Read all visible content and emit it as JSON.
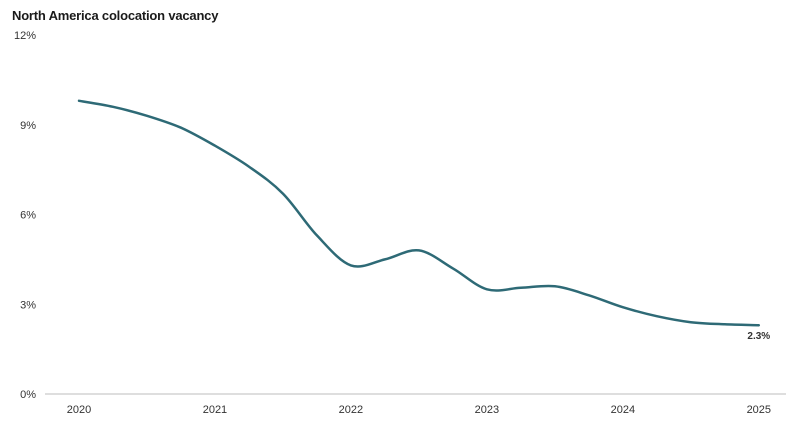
{
  "chart_data": {
    "type": "line",
    "title": "North America colocation vacancy",
    "xlabel": "",
    "ylabel": "",
    "x": [
      2020.0,
      2020.25,
      2020.5,
      2020.75,
      2021.0,
      2021.25,
      2021.5,
      2021.75,
      2022.0,
      2022.25,
      2022.5,
      2022.75,
      2023.0,
      2023.25,
      2023.5,
      2023.75,
      2024.0,
      2024.25,
      2024.5,
      2024.75,
      2025.0
    ],
    "values": [
      9.8,
      9.6,
      9.3,
      8.9,
      8.3,
      7.6,
      6.7,
      5.3,
      4.3,
      4.5,
      4.8,
      4.2,
      3.5,
      3.55,
      3.6,
      3.3,
      2.9,
      2.6,
      2.4,
      2.33,
      2.3
    ],
    "xticks": [
      "2020",
      "2021",
      "2022",
      "2023",
      "2024",
      "2025"
    ],
    "yticks": [
      "0%",
      "3%",
      "6%",
      "9%",
      "12%"
    ],
    "ylim": [
      0,
      12
    ],
    "xlim": [
      2019.75,
      2025.2
    ],
    "grid": false,
    "end_label": "2.3%",
    "line_color": "#2e6a76"
  }
}
